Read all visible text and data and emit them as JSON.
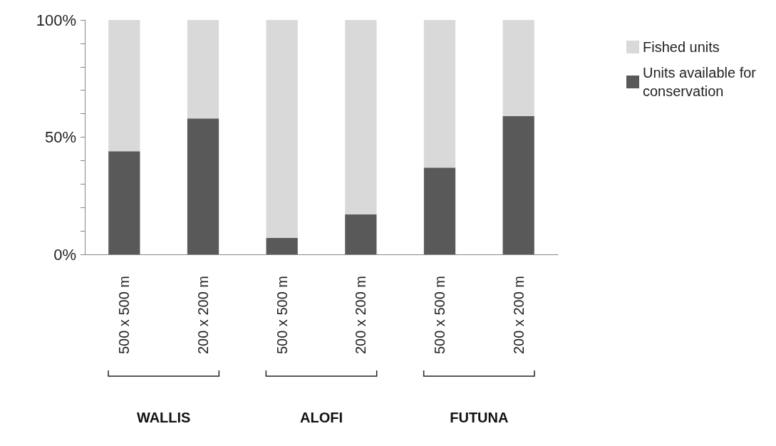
{
  "chart_data": {
    "type": "bar",
    "stacked": true,
    "categories": [
      "500 x 500 m",
      "200 x 200 m",
      "500 x 500 m",
      "200 x 200 m",
      "500 x 500 m",
      "200 x 200 m"
    ],
    "series": [
      {
        "name": "Units available for conservation",
        "color": "#595959",
        "values": [
          44,
          58,
          7,
          17,
          37,
          59
        ]
      },
      {
        "name": "Fished units",
        "color": "#d9d9d9",
        "values": [
          56,
          42,
          93,
          83,
          63,
          41
        ]
      }
    ],
    "ylim": [
      0,
      100
    ],
    "yticks": [
      {
        "value": 0,
        "label": "0%"
      },
      {
        "value": 10,
        "label": null
      },
      {
        "value": 20,
        "label": null
      },
      {
        "value": 30,
        "label": null
      },
      {
        "value": 40,
        "label": null
      },
      {
        "value": 50,
        "label": "50%"
      },
      {
        "value": 60,
        "label": null
      },
      {
        "value": 70,
        "label": null
      },
      {
        "value": 80,
        "label": null
      },
      {
        "value": 90,
        "label": null
      },
      {
        "value": 100,
        "label": "100%"
      }
    ],
    "annotations": [
      "WALLIS",
      "ALOFI",
      "FUTUNA"
    ],
    "grid": false,
    "legend": "top right"
  }
}
